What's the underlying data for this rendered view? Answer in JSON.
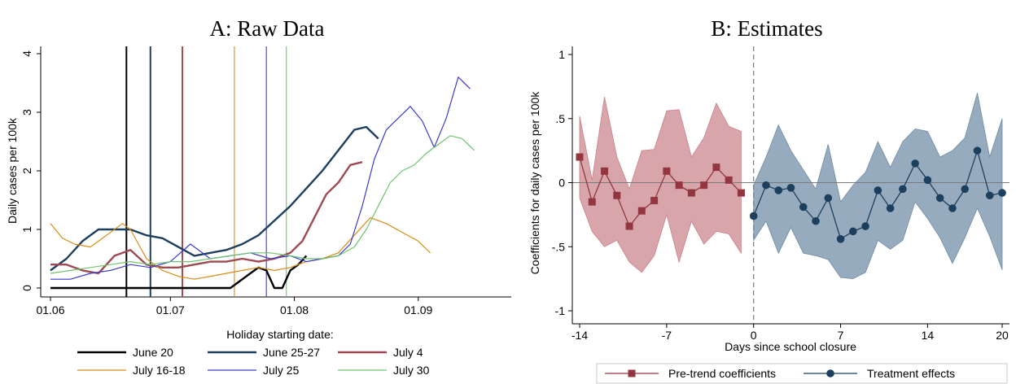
{
  "chart_data": [
    {
      "type": "line",
      "title": "A: Raw Data",
      "xlabel": "",
      "ylabel": "Daily cases per 100k",
      "x_ticks": [
        "01.06",
        "01.07",
        "01.08",
        "01.09"
      ],
      "x_tick_days": [
        0,
        30,
        61,
        92
      ],
      "x_range_days": [
        0,
        112
      ],
      "ylim": [
        0,
        4
      ],
      "y_ticks": [
        "0",
        "1",
        "2",
        "3",
        "4"
      ],
      "legend_title": "Holiday starting date:",
      "legend_position": "bottom",
      "series": [
        {
          "name": "June 20",
          "color": "#000000",
          "width": 2.4,
          "vline_day": 19,
          "x": [
            0,
            5,
            10,
            15,
            20,
            25,
            30,
            35,
            40,
            45,
            50,
            52,
            54,
            56,
            58,
            60,
            62,
            64
          ],
          "y": [
            0,
            0,
            0,
            0,
            0,
            0,
            0,
            0,
            0,
            0,
            0.25,
            0.35,
            0.3,
            0,
            0,
            0.3,
            0.4,
            0.55
          ]
        },
        {
          "name": "June 25-27",
          "color": "#1c3f5e",
          "width": 2.4,
          "vline_day": 25,
          "x": [
            0,
            4,
            8,
            12,
            16,
            20,
            24,
            28,
            32,
            36,
            40,
            44,
            48,
            52,
            56,
            60,
            64,
            68,
            72,
            76,
            79,
            82
          ],
          "y": [
            0.3,
            0.5,
            0.8,
            1.0,
            1.0,
            1.0,
            0.9,
            0.85,
            0.7,
            0.55,
            0.6,
            0.65,
            0.75,
            0.9,
            1.15,
            1.4,
            1.7,
            2.0,
            2.35,
            2.7,
            2.75,
            2.55
          ]
        },
        {
          "name": "July 4",
          "color": "#9e4a52",
          "width": 2.4,
          "vline_day": 33,
          "x": [
            0,
            4,
            8,
            12,
            16,
            20,
            24,
            28,
            32,
            36,
            40,
            44,
            48,
            52,
            56,
            60,
            63,
            66,
            69,
            72,
            75,
            78
          ],
          "y": [
            0.4,
            0.4,
            0.3,
            0.25,
            0.55,
            0.65,
            0.4,
            0.35,
            0.35,
            0.4,
            0.45,
            0.45,
            0.5,
            0.45,
            0.5,
            0.6,
            0.8,
            1.2,
            1.6,
            1.8,
            2.1,
            2.15
          ]
        },
        {
          "name": "July 16-18",
          "color": "#d98c17",
          "width": 1.2,
          "vline_day": 46,
          "x": [
            0,
            3,
            6,
            10,
            14,
            18,
            20,
            24,
            28,
            32,
            36,
            40,
            44,
            48,
            52,
            56,
            60,
            64,
            68,
            72,
            76,
            80,
            84,
            88,
            92,
            95
          ],
          "y": [
            1.1,
            0.85,
            0.75,
            0.7,
            0.9,
            1.1,
            1.0,
            0.5,
            0.3,
            0.2,
            0.15,
            0.2,
            0.25,
            0.3,
            0.35,
            0.3,
            0.35,
            0.45,
            0.5,
            0.6,
            0.9,
            1.2,
            1.1,
            0.95,
            0.8,
            0.6
          ]
        },
        {
          "name": "July 25",
          "color": "#3a3acf",
          "width": 1.2,
          "vline_day": 54,
          "x": [
            0,
            5,
            10,
            15,
            20,
            25,
            30,
            35,
            40,
            45,
            50,
            55,
            60,
            64,
            68,
            72,
            75,
            78,
            81,
            84,
            87,
            90,
            93,
            96,
            99,
            102,
            105
          ],
          "y": [
            0.15,
            0.15,
            0.25,
            0.3,
            0.4,
            0.35,
            0.45,
            0.75,
            0.5,
            0.55,
            0.6,
            0.5,
            0.55,
            0.45,
            0.5,
            0.55,
            0.75,
            1.4,
            2.2,
            2.7,
            2.9,
            3.1,
            2.85,
            2.4,
            2.9,
            3.6,
            3.4
          ]
        },
        {
          "name": "July 30",
          "color": "#6fc46f",
          "width": 1.2,
          "vline_day": 59,
          "x": [
            0,
            5,
            10,
            15,
            20,
            25,
            30,
            35,
            40,
            45,
            50,
            55,
            60,
            64,
            68,
            72,
            76,
            79,
            82,
            85,
            88,
            91,
            94,
            97,
            100,
            103,
            106
          ],
          "y": [
            0.25,
            0.3,
            0.35,
            0.4,
            0.45,
            0.4,
            0.45,
            0.45,
            0.5,
            0.55,
            0.6,
            0.6,
            0.55,
            0.5,
            0.5,
            0.55,
            0.7,
            1.0,
            1.4,
            1.8,
            2.0,
            2.1,
            2.3,
            2.45,
            2.6,
            2.55,
            2.35
          ]
        }
      ]
    },
    {
      "type": "line",
      "title": "B: Estimates",
      "xlabel": "Days since school closure",
      "ylabel": "Coefficients for daily cases per 100k",
      "xlim": [
        -14.5,
        20.5
      ],
      "x_ticks": [
        -14,
        -7,
        0,
        7,
        14,
        20
      ],
      "ylim": [
        -1.05,
        1.05
      ],
      "y_ticks": [
        -1,
        -0.5,
        0,
        0.5,
        1
      ],
      "y_tick_labels": [
        "-1",
        "-.5",
        "0",
        ".5",
        "1"
      ],
      "reference_line_x": 0,
      "reference_line_y": 0,
      "legend_position": "bottom",
      "series": [
        {
          "name": "Pre-trend coefficients",
          "color": "#94363f",
          "band_color": "#c98289",
          "marker": "square",
          "x": [
            -14,
            -13,
            -12,
            -11,
            -10,
            -9,
            -8,
            -7,
            -6,
            -5,
            -4,
            -3,
            -2,
            -1
          ],
          "y": [
            0.2,
            -0.15,
            0.09,
            -0.1,
            -0.34,
            -0.22,
            -0.14,
            0.09,
            -0.02,
            -0.08,
            -0.02,
            0.12,
            0.02,
            -0.08
          ],
          "lower": [
            -0.12,
            -0.38,
            -0.5,
            -0.45,
            -0.62,
            -0.7,
            -0.57,
            -0.25,
            -0.62,
            -0.3,
            -0.48,
            -0.38,
            -0.4,
            -0.55
          ],
          "upper": [
            0.52,
            0.02,
            0.67,
            0.2,
            -0.05,
            0.25,
            0.26,
            0.56,
            0.57,
            0.2,
            0.35,
            0.62,
            0.44,
            0.4
          ]
        },
        {
          "name": "Treatment effects",
          "color": "#1c3f5e",
          "band_color": "#6f8ba5",
          "marker": "circle",
          "x": [
            0,
            1,
            2,
            3,
            4,
            5,
            6,
            7,
            8,
            9,
            10,
            11,
            12,
            13,
            14,
            15,
            16,
            17,
            18,
            19,
            20
          ],
          "y": [
            -0.26,
            -0.02,
            -0.06,
            -0.04,
            -0.19,
            -0.3,
            -0.12,
            -0.44,
            -0.38,
            -0.34,
            -0.06,
            -0.2,
            -0.05,
            0.15,
            0.02,
            -0.12,
            -0.2,
            -0.05,
            0.25,
            -0.1,
            -0.08
          ],
          "lower": [
            -0.45,
            -0.3,
            -0.55,
            -0.35,
            -0.55,
            -0.57,
            -0.6,
            -0.74,
            -0.75,
            -0.7,
            -0.45,
            -0.52,
            -0.45,
            -0.15,
            -0.28,
            -0.43,
            -0.63,
            -0.43,
            -0.2,
            -0.42,
            -0.68
          ],
          "upper": [
            -0.02,
            0.2,
            0.45,
            0.25,
            0.1,
            -0.05,
            0.3,
            -0.15,
            -0.02,
            0.08,
            0.32,
            0.12,
            0.32,
            0.42,
            0.4,
            0.2,
            0.25,
            0.35,
            0.7,
            0.2,
            0.5
          ]
        }
      ]
    }
  ]
}
